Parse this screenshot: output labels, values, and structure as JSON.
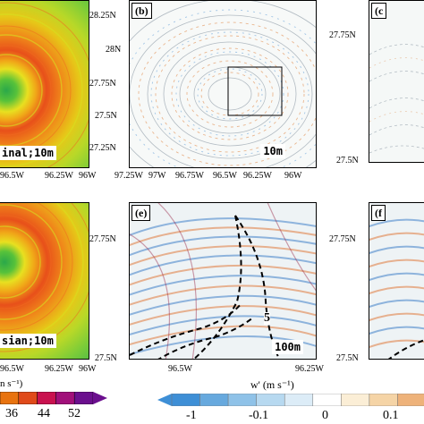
{
  "panels": {
    "a": {
      "label_suffix": "inal;10m",
      "xticks": [
        "96.5W",
        "96.25W",
        "96W"
      ]
    },
    "b": {
      "label": "(b)",
      "corner": "10m",
      "xticks": [
        "97.25W",
        "97W",
        "96.75W",
        "96.5W",
        "96.25W",
        "96W"
      ],
      "yticks": [
        "28.25N",
        "28N",
        "27.75N",
        "27.5N",
        "27.25N"
      ]
    },
    "c": {
      "label": "(c",
      "yticks": [
        "27.75N",
        "27.5N"
      ]
    },
    "d": {
      "label_suffix": "sian;10m",
      "xticks": [
        "96.5W",
        "96.25W",
        "96W"
      ],
      "unit_fragment": "n s⁻¹)"
    },
    "e": {
      "label": "(e)",
      "corner": "100m",
      "contour_label": "5",
      "xticks": [
        "96.5W",
        "96.25W"
      ],
      "yticks": [
        "27.75N",
        "27.5N"
      ]
    },
    "f": {
      "label": "(f",
      "yticks": [
        "27.75N",
        "27.5N"
      ]
    }
  },
  "colorbar_left": {
    "labels": [
      "36",
      "44",
      "52"
    ],
    "colors": [
      "#e8730f",
      "#e04a1a",
      "#c9124f",
      "#a1107a",
      "#6b0f8e"
    ]
  },
  "colorbar_right": {
    "title": "w' (m s⁻¹)",
    "labels": [
      "-1",
      "-0.1",
      "0",
      "0.1"
    ],
    "colors": [
      "#3e8fd6",
      "#67a9de",
      "#8fc2e8",
      "#b7d9f0",
      "#dcecf7",
      "#ffffff",
      "#fbeed6",
      "#f5d4a6",
      "#eeb27a"
    ]
  }
}
